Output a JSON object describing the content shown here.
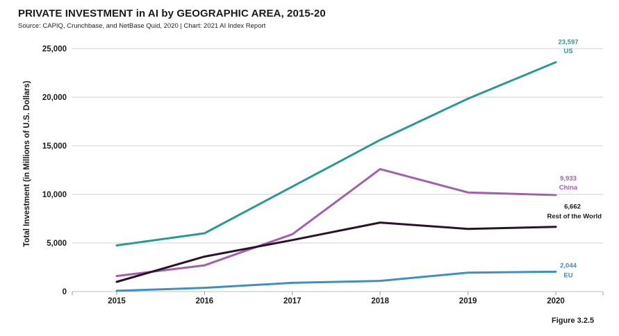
{
  "header": {
    "title": "PRIVATE INVESTMENT in AI by GEOGRAPHIC AREA, 2015-20",
    "subtitle": "Source: CAPIQ, Crunchbase, and NetBase Quid, 2020 | Chart: 2021 AI Index Report"
  },
  "footer": {
    "figure": "Figure 3.2.5"
  },
  "chart_data": {
    "type": "line",
    "title": "PRIVATE INVESTMENT in AI by GEOGRAPHIC AREA, 2015-20",
    "xlabel": "",
    "ylabel": "Total Investment (in Millions of U.S. Dollars)",
    "x": [
      2015,
      2016,
      2017,
      2018,
      2019,
      2020
    ],
    "x_tick_labels": [
      "2015",
      "2016",
      "2017",
      "2018",
      "2019",
      "2020"
    ],
    "y_ticks": [
      0,
      5000,
      10000,
      15000,
      20000,
      25000
    ],
    "y_tick_labels": [
      "0",
      "5,000",
      "10,000",
      "15,000",
      "20,000",
      "25,000"
    ],
    "ylim": [
      0,
      25000
    ],
    "grid": true,
    "legend": "none",
    "series": [
      {
        "name": "US",
        "color": "#2a9994",
        "values": [
          4750,
          6000,
          10800,
          15600,
          19850,
          23597
        ],
        "end_label": "23,597"
      },
      {
        "name": "China",
        "color": "#a15fad",
        "values": [
          1600,
          2700,
          5900,
          12600,
          10200,
          9933
        ],
        "end_label": "9,933"
      },
      {
        "name": "Rest of the World",
        "color": "#2a1329",
        "values": [
          1000,
          3600,
          5300,
          7100,
          6450,
          6662
        ],
        "end_label": "6,662",
        "label_color": "#1a1a1a"
      },
      {
        "name": "EU",
        "color": "#3f8fc3",
        "values": [
          80,
          380,
          900,
          1100,
          1950,
          2044
        ],
        "end_label": "2,044"
      }
    ]
  }
}
